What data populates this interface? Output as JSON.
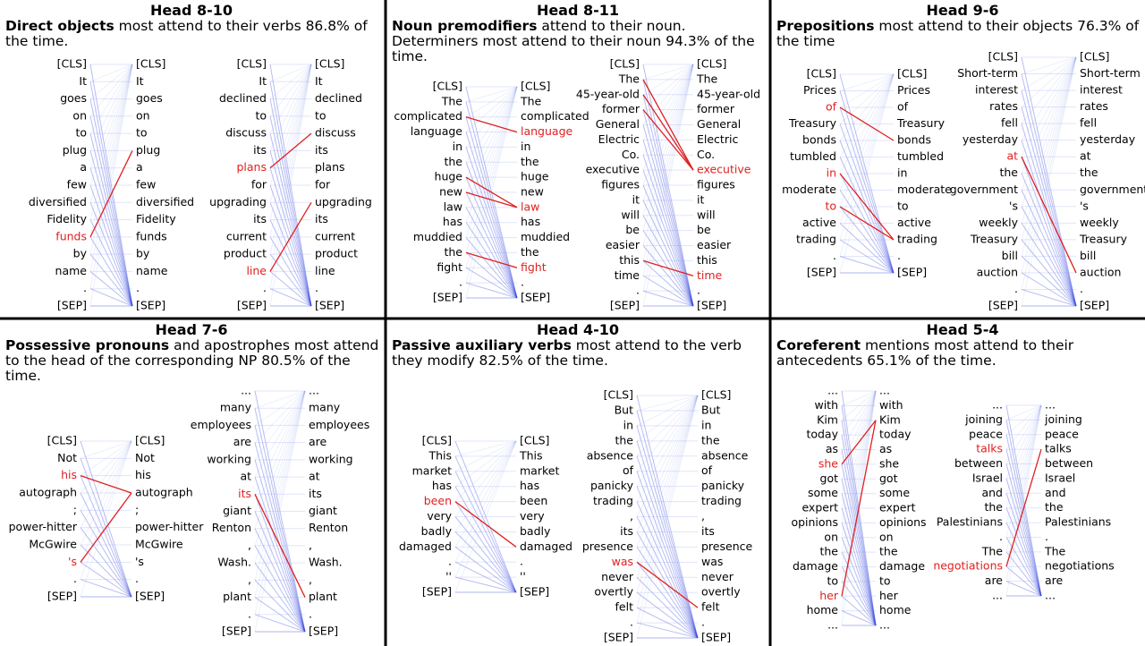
{
  "panels": [
    {
      "title": "Head 8-10",
      "caption_bold": "Direct objects",
      "caption_rest": "most attend to their verbs 86.8% of the time.",
      "diagrams": [
        {
          "tokens": [
            "[CLS]",
            "It",
            "goes",
            "on",
            "to",
            "plug",
            "a",
            "few",
            "diversified",
            "Fidelity",
            "funds",
            "by",
            "name",
            ".",
            "[SEP]"
          ],
          "red_left": [
            10
          ],
          "red_right": [],
          "links": [
            [
              10,
              5
            ]
          ]
        },
        {
          "tokens": [
            "[CLS]",
            "It",
            "declined",
            "to",
            "discuss",
            "its",
            "plans",
            "for",
            "upgrading",
            "its",
            "current",
            "product",
            "line",
            ".",
            "[SEP]"
          ],
          "red_left": [
            6,
            12
          ],
          "red_right": [],
          "links": [
            [
              6,
              4
            ],
            [
              12,
              8
            ]
          ]
        }
      ]
    },
    {
      "title": "Head 8-11",
      "caption_bold": "Noun premodifiers",
      "caption_rest": "attend to their noun. Determiners most attend to their noun 94.3% of the time.",
      "diagrams": [
        {
          "tokens": [
            "[CLS]",
            "The",
            "complicated",
            "language",
            "in",
            "the",
            "huge",
            "new",
            "law",
            "has",
            "muddied",
            "the",
            "fight",
            ".",
            "[SEP]"
          ],
          "red_left": [],
          "red_right": [
            3,
            8,
            12
          ],
          "links": [
            [
              2,
              3
            ],
            [
              6,
              8
            ],
            [
              7,
              8
            ],
            [
              11,
              12
            ]
          ]
        },
        {
          "tokens": [
            "[CLS]",
            "The",
            "45-year-old",
            "former",
            "General",
            "Electric",
            "Co.",
            "executive",
            "figures",
            "it",
            "will",
            "be",
            "easier",
            "this",
            "time",
            ".",
            "[SEP]"
          ],
          "red_left": [],
          "red_right": [
            7,
            14
          ],
          "links": [
            [
              1,
              7
            ],
            [
              2,
              7
            ],
            [
              3,
              7
            ],
            [
              13,
              14
            ]
          ]
        }
      ]
    },
    {
      "title": "Head 9-6",
      "caption_bold": "Prepositions",
      "caption_rest": "most attend to their objects 76.3% of the time",
      "diagrams": [
        {
          "tokens": [
            "[CLS]",
            "Prices",
            "of",
            "Treasury",
            "bonds",
            "tumbled",
            "in",
            "moderate",
            "to",
            "active",
            "trading",
            ".",
            "[SEP]"
          ],
          "red_left": [
            2,
            6,
            8
          ],
          "red_right": [],
          "links": [
            [
              2,
              4
            ],
            [
              6,
              10
            ],
            [
              8,
              10
            ]
          ]
        },
        {
          "tokens": [
            "[CLS]",
            "Short-term",
            "interest",
            "rates",
            "fell",
            "yesterday",
            "at",
            "the",
            "government",
            "'s",
            "weekly",
            "Treasury",
            "bill",
            "auction",
            ".",
            "[SEP]"
          ],
          "red_left": [
            6
          ],
          "red_right": [],
          "links": [
            [
              6,
              13
            ]
          ]
        }
      ]
    },
    {
      "title": "Head 7-6",
      "caption_bold": "Possessive pronouns",
      "caption_rest": "and apostrophes most attend to the head of the corresponding NP 80.5% of the time.",
      "diagrams": [
        {
          "tokens": [
            "[CLS]",
            "Not",
            "his",
            "autograph",
            ";",
            "power-hitter",
            "McGwire",
            "'s",
            ".",
            "[SEP]"
          ],
          "red_left": [
            2,
            7
          ],
          "red_right": [],
          "links": [
            [
              2,
              3
            ],
            [
              7,
              3
            ]
          ]
        },
        {
          "tokens": [
            "...",
            "many",
            "employees",
            "are",
            "working",
            "at",
            "its",
            "giant",
            "Renton",
            ",",
            "Wash.",
            ",",
            "plant",
            ".",
            "[SEP]"
          ],
          "red_left": [
            6
          ],
          "red_right": [],
          "links": [
            [
              6,
              12
            ]
          ]
        }
      ]
    },
    {
      "title": "Head 4-10",
      "caption_bold": "Passive auxiliary verbs",
      "caption_rest": "most attend to the verb they modify 82.5% of the time.",
      "diagrams": [
        {
          "tokens": [
            "[CLS]",
            "This",
            "market",
            "has",
            "been",
            "very",
            "badly",
            "damaged",
            ".",
            "''",
            "[SEP]"
          ],
          "red_left": [
            4
          ],
          "red_right": [],
          "links": [
            [
              4,
              7
            ]
          ]
        },
        {
          "tokens": [
            "[CLS]",
            "But",
            "in",
            "the",
            "absence",
            "of",
            "panicky",
            "trading",
            ",",
            "its",
            "presence",
            "was",
            "never",
            "overtly",
            "felt",
            ".",
            "[SEP]"
          ],
          "red_left": [
            11
          ],
          "red_right": [],
          "links": [
            [
              11,
              14
            ]
          ]
        }
      ]
    },
    {
      "title": "Head 5-4",
      "caption_bold": "Coreferent",
      "caption_rest": "mentions most attend to their antecedents 65.1% of the time.",
      "diagrams": [
        {
          "tokens": [
            "...",
            "with",
            "Kim",
            "today",
            "as",
            "she",
            "got",
            "some",
            "expert",
            "opinions",
            "on",
            "the",
            "damage",
            "to",
            "her",
            "home",
            "..."
          ],
          "red_left": [
            5,
            14
          ],
          "red_right": [],
          "links": [
            [
              5,
              2
            ],
            [
              14,
              2
            ]
          ]
        },
        {
          "tokens": [
            "...",
            "joining",
            "peace",
            "talks",
            "between",
            "Israel",
            "and",
            "the",
            "Palestinians",
            ".",
            "The",
            "negotiations",
            "are",
            "..."
          ],
          "red_left": [
            3,
            11
          ],
          "red_right": [],
          "links": [
            [
              11,
              3
            ]
          ]
        }
      ]
    }
  ]
}
